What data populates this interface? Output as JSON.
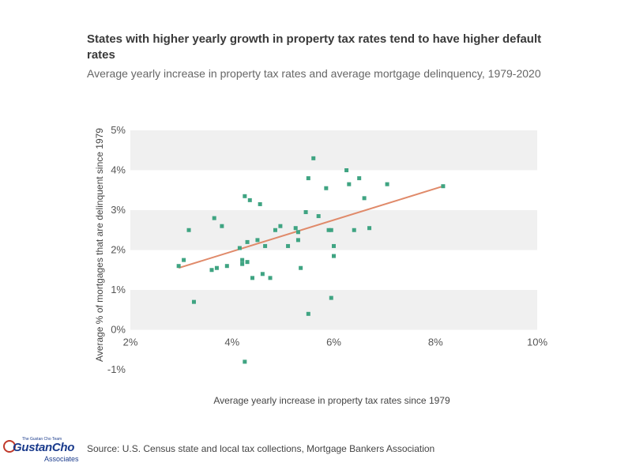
{
  "title": "States with higher yearly growth in property tax rates tend to have higher default rates",
  "subtitle": "Average yearly increase in property tax rates and average mortgage delinquency, 1979-2020",
  "source": "Source:  U.S. Census state and local tax collections, Mortgage Bankers Association",
  "logo": {
    "top_text": "The Gustan Cho Team",
    "main_text": "GustanCho",
    "sub_text": "Associates"
  },
  "colors": {
    "points": "#3fa482",
    "trend": "#e08a6a",
    "band": "#f0f0f0"
  },
  "chart_data": {
    "type": "scatter",
    "title": "States with higher yearly growth in property tax rates tend to have higher default rates",
    "subtitle": "Average yearly increase in property tax rates and average mortgage delinquency, 1979-2020",
    "xlabel": "Average yearly increase in property tax rates since 1979",
    "ylabel": "Average % of mortgages that are delinquent since 1979",
    "xlim": [
      2,
      10
    ],
    "ylim": [
      -1,
      5
    ],
    "x_ticks": [
      2,
      4,
      6,
      8,
      10
    ],
    "x_tick_labels": [
      "2%",
      "4%",
      "6%",
      "8%",
      "10%"
    ],
    "y_ticks": [
      -1,
      0,
      1,
      2,
      3,
      4,
      5
    ],
    "y_tick_labels": [
      "-1%",
      "0%",
      "1%",
      "2%",
      "3%",
      "4%",
      "5%"
    ],
    "grid": "alternating horizontal bands",
    "points": [
      [
        2.95,
        1.6
      ],
      [
        3.05,
        1.75
      ],
      [
        3.15,
        2.5
      ],
      [
        3.25,
        0.7
      ],
      [
        3.6,
        1.5
      ],
      [
        3.65,
        2.8
      ],
      [
        3.7,
        1.55
      ],
      [
        3.8,
        2.6
      ],
      [
        3.9,
        1.6
      ],
      [
        4.15,
        2.05
      ],
      [
        4.2,
        1.75
      ],
      [
        4.2,
        1.65
      ],
      [
        4.25,
        3.35
      ],
      [
        4.3,
        2.2
      ],
      [
        4.3,
        1.7
      ],
      [
        4.35,
        3.25
      ],
      [
        4.4,
        1.3
      ],
      [
        4.5,
        2.25
      ],
      [
        4.55,
        3.15
      ],
      [
        4.6,
        1.4
      ],
      [
        4.65,
        2.1
      ],
      [
        4.25,
        -0.8
      ],
      [
        4.75,
        1.3
      ],
      [
        4.85,
        2.5
      ],
      [
        4.95,
        2.6
      ],
      [
        5.1,
        2.1
      ],
      [
        5.25,
        2.55
      ],
      [
        5.3,
        2.45
      ],
      [
        5.3,
        2.25
      ],
      [
        5.35,
        1.55
      ],
      [
        5.45,
        2.95
      ],
      [
        5.5,
        3.8
      ],
      [
        5.5,
        0.4
      ],
      [
        5.6,
        4.3
      ],
      [
        5.7,
        2.85
      ],
      [
        5.85,
        3.55
      ],
      [
        5.9,
        2.5
      ],
      [
        5.95,
        0.8
      ],
      [
        5.95,
        2.5
      ],
      [
        6.0,
        1.85
      ],
      [
        6.0,
        2.1
      ],
      [
        6.25,
        4.0
      ],
      [
        6.3,
        3.65
      ],
      [
        6.4,
        2.5
      ],
      [
        6.5,
        3.8
      ],
      [
        6.6,
        3.3
      ],
      [
        6.7,
        2.55
      ],
      [
        7.05,
        3.65
      ],
      [
        8.15,
        3.6
      ]
    ],
    "trendline": [
      [
        2.95,
        1.55
      ],
      [
        8.15,
        3.6
      ]
    ]
  }
}
